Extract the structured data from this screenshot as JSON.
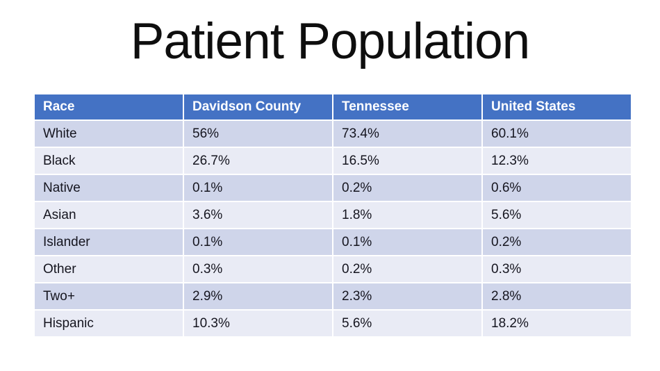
{
  "slide": {
    "title": "Patient Population"
  },
  "colors": {
    "header_bg": "#4472C4",
    "band_dark": "#CFD5EA",
    "band_light": "#E9EBF5",
    "header_text": "#FFFFFF",
    "body_text": "#15151F",
    "background": "#FFFFFF"
  },
  "table": {
    "columns": [
      "Race",
      "Davidson County",
      "Tennessee",
      "United States"
    ],
    "rows": [
      [
        "White",
        "56%",
        "73.4%",
        "60.1%"
      ],
      [
        "Black",
        "26.7%",
        "16.5%",
        "12.3%"
      ],
      [
        "Native",
        "0.1%",
        "0.2%",
        "0.6%"
      ],
      [
        "Asian",
        "3.6%",
        "1.8%",
        "5.6%"
      ],
      [
        "Islander",
        "0.1%",
        "0.1%",
        "0.2%"
      ],
      [
        "Other",
        "0.3%",
        "0.2%",
        "0.3%"
      ],
      [
        "Two+",
        "2.9%",
        "2.3%",
        "2.8%"
      ],
      [
        "Hispanic",
        "10.3%",
        "5.6%",
        "18.2%"
      ]
    ]
  },
  "chart_data": {
    "type": "table",
    "title": "Patient Population",
    "categories": [
      "White",
      "Black",
      "Native",
      "Asian",
      "Islander",
      "Other",
      "Two+",
      "Hispanic"
    ],
    "series": [
      {
        "name": "Davidson County",
        "values": [
          56,
          26.7,
          0.1,
          3.6,
          0.1,
          0.3,
          2.9,
          10.3
        ]
      },
      {
        "name": "Tennessee",
        "values": [
          73.4,
          16.5,
          0.2,
          1.8,
          0.1,
          0.2,
          2.3,
          5.6
        ]
      },
      {
        "name": "United States",
        "values": [
          60.1,
          12.3,
          0.6,
          5.6,
          0.2,
          0.3,
          2.8,
          18.2
        ]
      }
    ],
    "unit": "%"
  }
}
